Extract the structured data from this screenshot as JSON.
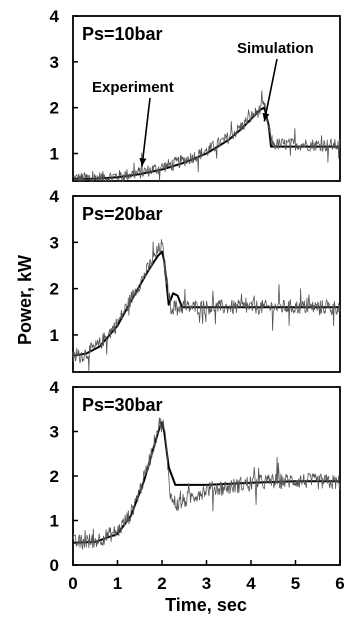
{
  "chart_data": [
    {
      "type": "line",
      "panel_label": "Ps=10bar",
      "xlim": [
        0,
        6
      ],
      "ylim": [
        0.4,
        4
      ],
      "yticks": [
        1,
        2,
        3,
        4
      ],
      "annotations": [
        {
          "text": "Experiment",
          "target": [
            1.55,
            0.72
          ]
        },
        {
          "text": "Simulation",
          "target": [
            4.3,
            1.7
          ]
        }
      ],
      "series": [
        {
          "name": "Simulation",
          "style": "solid",
          "x": [
            0,
            0.5,
            1.0,
            1.5,
            2.0,
            2.5,
            3.0,
            3.5,
            3.8,
            4.0,
            4.2,
            4.3,
            4.4,
            4.45,
            4.5,
            6.0
          ],
          "y": [
            0.45,
            0.45,
            0.48,
            0.55,
            0.65,
            0.8,
            1.0,
            1.3,
            1.55,
            1.75,
            1.95,
            2.0,
            1.6,
            1.15,
            1.15,
            1.15
          ]
        },
        {
          "name": "Experiment",
          "style": "noisy",
          "x": [
            0,
            0.5,
            1.0,
            1.5,
            2.0,
            2.5,
            3.0,
            3.5,
            3.8,
            4.0,
            4.2,
            4.3,
            4.4,
            4.5,
            5.0,
            6.0
          ],
          "y": [
            0.45,
            0.47,
            0.5,
            0.58,
            0.7,
            0.85,
            1.05,
            1.35,
            1.6,
            1.8,
            1.95,
            2.05,
            1.5,
            1.2,
            1.2,
            1.18
          ],
          "noise": 0.14
        }
      ]
    },
    {
      "type": "line",
      "panel_label": "Ps=20bar",
      "xlim": [
        0,
        6
      ],
      "ylim": [
        0.2,
        4
      ],
      "yticks": [
        1,
        2,
        3,
        4
      ],
      "series": [
        {
          "name": "Simulation",
          "style": "solid",
          "x": [
            0,
            0.3,
            0.6,
            1.0,
            1.4,
            1.7,
            1.9,
            2.0,
            2.05,
            2.15,
            2.25,
            2.35,
            2.45,
            2.55,
            6.0
          ],
          "y": [
            0.55,
            0.6,
            0.75,
            1.2,
            1.9,
            2.4,
            2.7,
            2.8,
            2.6,
            1.65,
            1.9,
            1.85,
            1.6,
            1.6,
            1.6
          ],
          "noise": 0
        },
        {
          "name": "Experiment",
          "style": "noisy",
          "x": [
            0,
            0.3,
            0.6,
            1.0,
            1.4,
            1.7,
            1.9,
            2.0,
            2.1,
            2.2,
            2.5,
            3.0,
            4.0,
            5.0,
            6.0
          ],
          "y": [
            0.5,
            0.6,
            0.8,
            1.25,
            1.95,
            2.45,
            2.8,
            2.95,
            2.2,
            1.6,
            1.6,
            1.6,
            1.6,
            1.6,
            1.6
          ],
          "noise": 0.16
        }
      ]
    },
    {
      "type": "line",
      "panel_label": "Ps=30bar",
      "xlim": [
        0,
        6
      ],
      "ylim": [
        0,
        4
      ],
      "yticks": [
        0,
        1,
        2,
        3,
        4
      ],
      "xticks": [
        0,
        1,
        2,
        3,
        4,
        5,
        6
      ],
      "xlabel": "Time, sec",
      "series": [
        {
          "name": "Simulation",
          "style": "solid",
          "x": [
            0,
            0.5,
            1.0,
            1.3,
            1.6,
            1.8,
            1.95,
            2.0,
            2.05,
            2.15,
            2.3,
            2.5,
            3.0,
            4.0,
            5.0,
            6.0
          ],
          "y": [
            0.5,
            0.52,
            0.7,
            1.1,
            1.9,
            2.6,
            3.1,
            3.2,
            3.0,
            2.2,
            1.8,
            1.8,
            1.8,
            1.85,
            1.88,
            1.88
          ]
        },
        {
          "name": "Experiment",
          "style": "noisy",
          "x": [
            0,
            0.5,
            1.0,
            1.3,
            1.6,
            1.8,
            1.95,
            2.05,
            2.2,
            2.35,
            2.6,
            3.0,
            3.5,
            4.0,
            5.0,
            6.0
          ],
          "y": [
            0.5,
            0.55,
            0.75,
            1.15,
            1.95,
            2.65,
            3.2,
            3.1,
            1.5,
            1.35,
            1.5,
            1.7,
            1.75,
            1.85,
            1.9,
            1.85
          ],
          "noise": 0.18
        }
      ]
    }
  ],
  "shared_ylabel": "Power, kW",
  "colors": {
    "simulation": "#000000",
    "experiment": "#555555"
  }
}
